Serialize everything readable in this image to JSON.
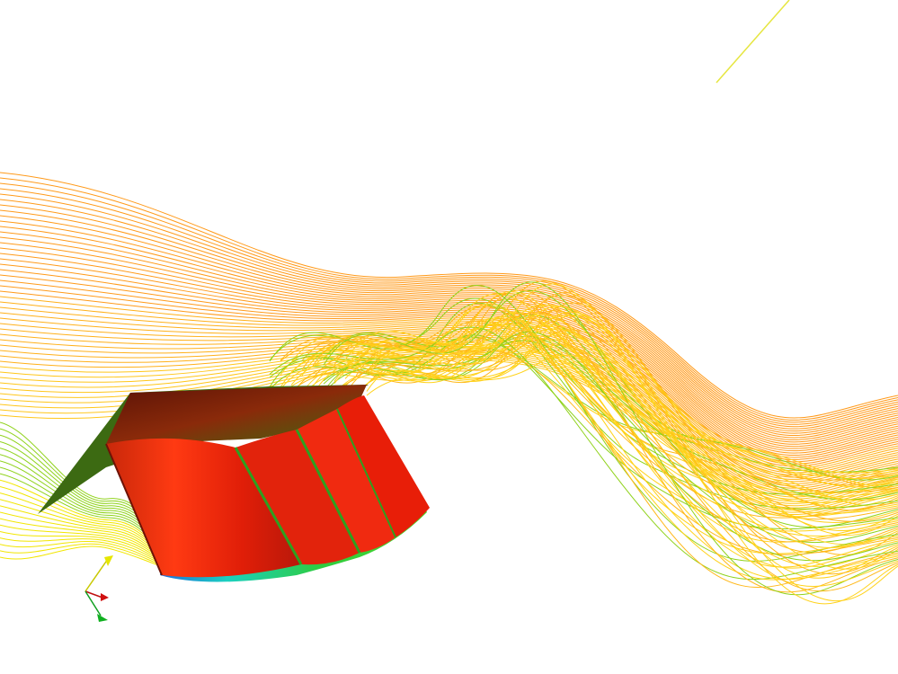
{
  "scene": {
    "background": "#ffffff",
    "streamline_colors": {
      "upstream": "#ff9a1a",
      "wake": "#ffd21a",
      "near_wall": "#8fd21a",
      "lower": "#f2e600"
    },
    "body_colors": {
      "main": "#e8200c",
      "shade": "#b51a05",
      "highlight": "#ff5a1e",
      "top_plate": "#7a1a08",
      "base_green": "#2ecc40",
      "base_blue": "#1b8fe0"
    },
    "axis_triad_colors": {
      "x": "#d01010",
      "y": "#e6e600",
      "z": "#10b020"
    }
  }
}
